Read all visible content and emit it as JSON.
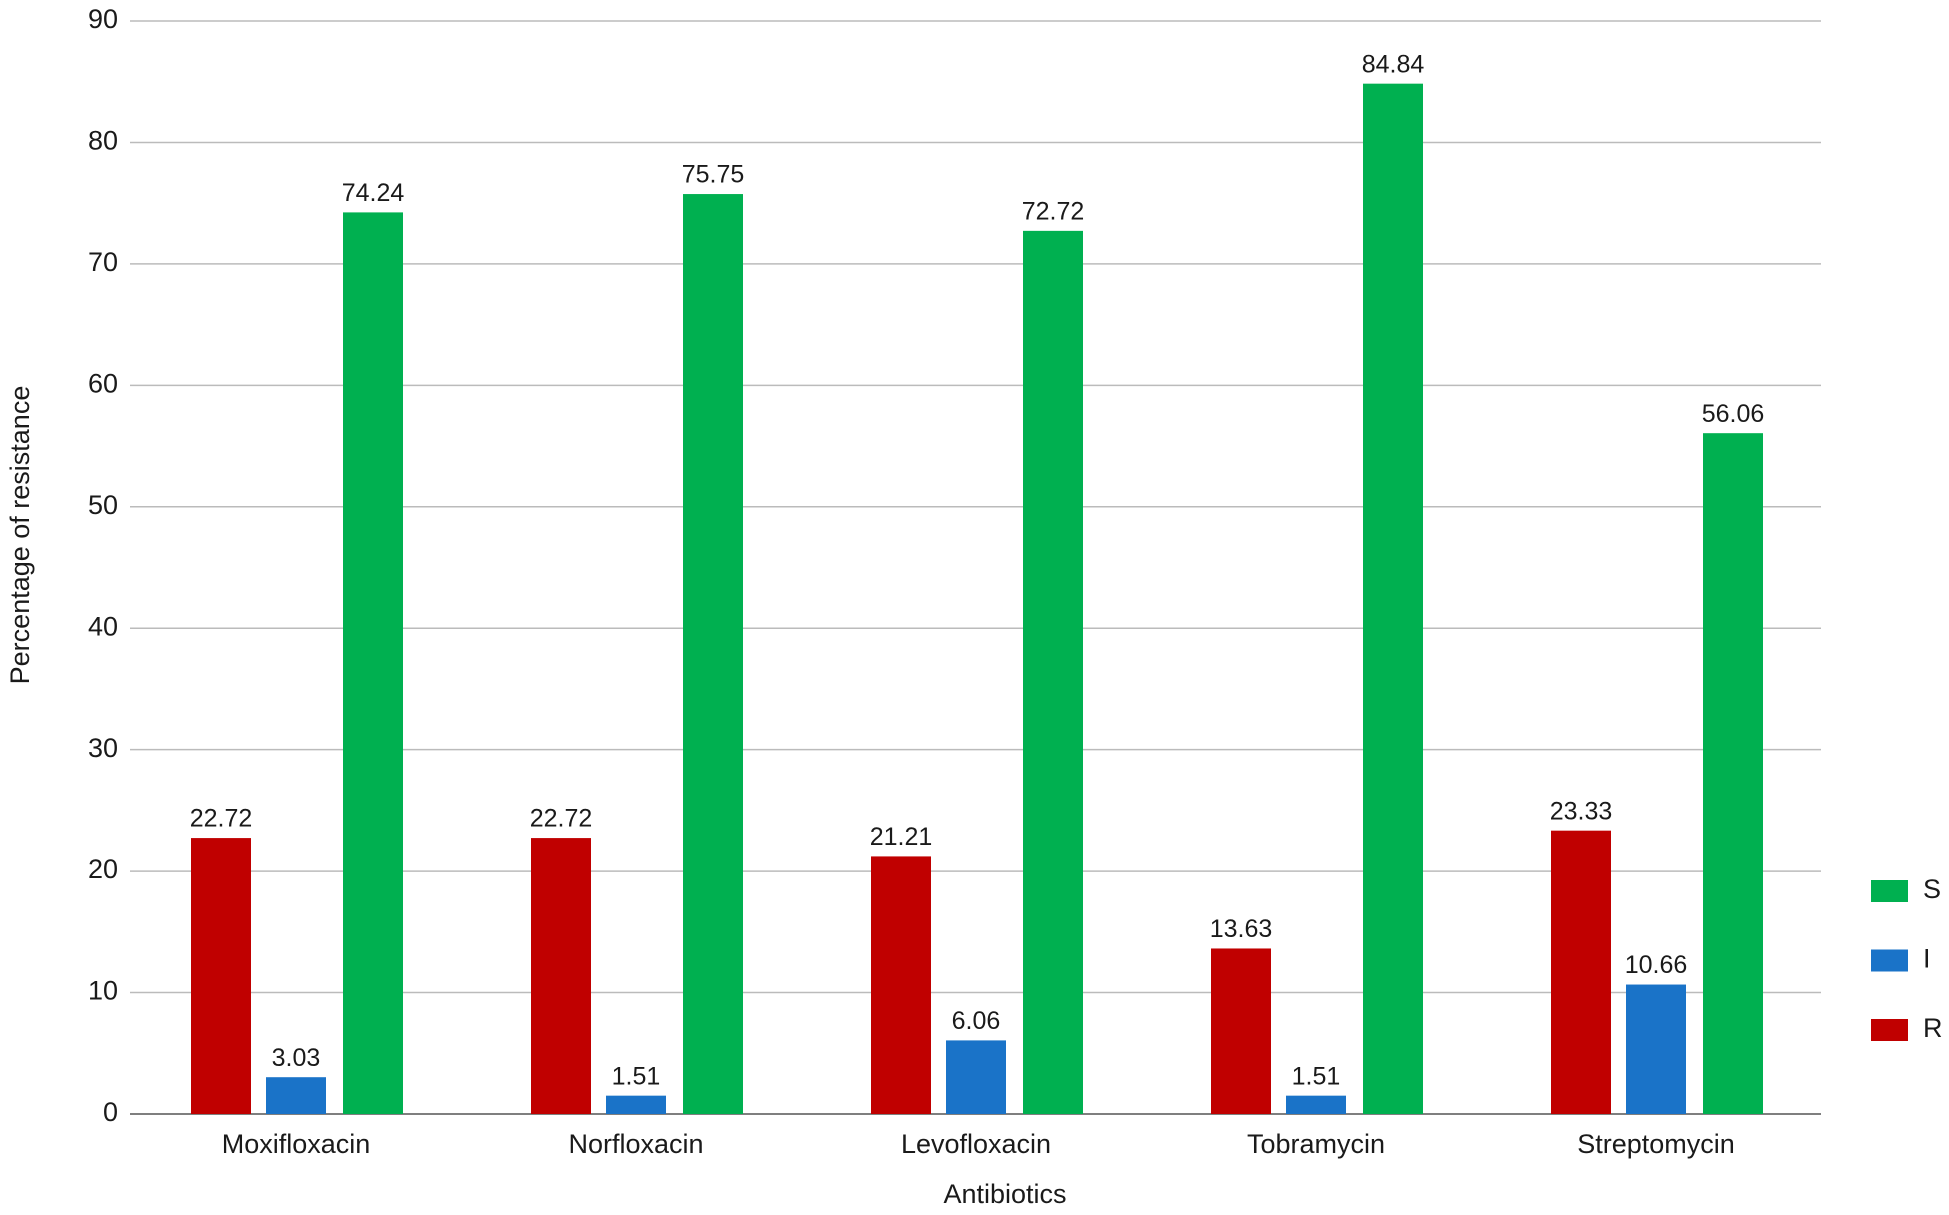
{
  "chart_data": {
    "type": "bar",
    "x_label": "Antibiotics",
    "y_label": "Percentage of resistance",
    "categories": [
      "Moxifloxacin",
      "Norfloxacin",
      "Levofloxacin",
      "Tobramycin",
      "Streptomycin"
    ],
    "series": [
      {
        "name": "R",
        "color": "#c00000",
        "values": [
          22.72,
          22.72,
          21.21,
          13.63,
          23.33
        ]
      },
      {
        "name": "I",
        "color": "#1a73c8",
        "values": [
          3.03,
          1.51,
          6.06,
          1.51,
          10.66
        ]
      },
      {
        "name": "S",
        "color": "#00b050",
        "values": [
          74.24,
          75.75,
          72.72,
          84.84,
          56.06
        ]
      }
    ],
    "ylim": [
      0,
      90
    ],
    "yticks": [
      0,
      10,
      20,
      30,
      40,
      50,
      60,
      70,
      80,
      90
    ],
    "grid": true,
    "legend": "right"
  }
}
